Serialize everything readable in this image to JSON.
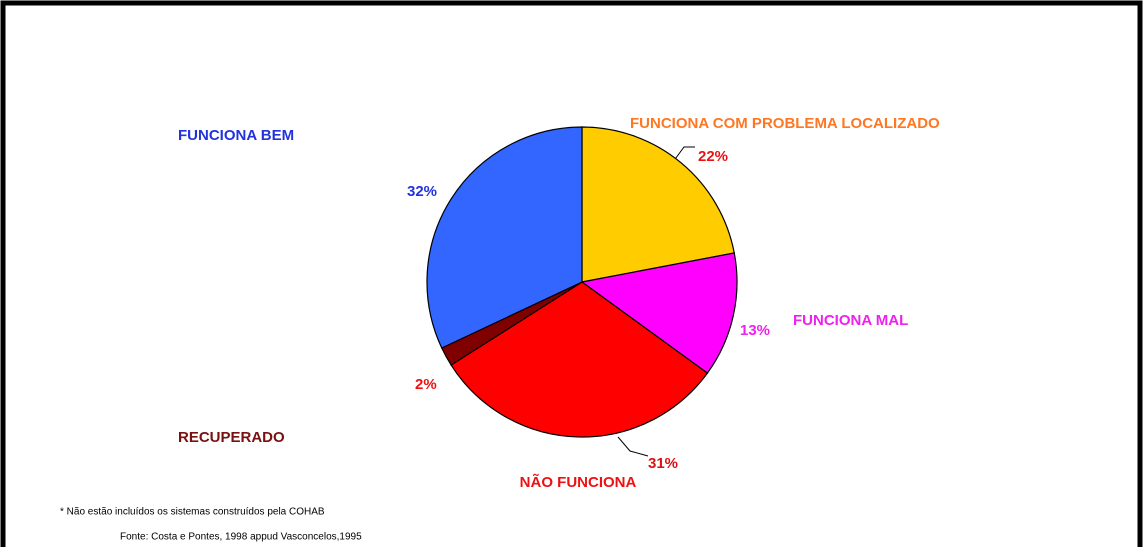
{
  "chart_data": {
    "type": "pie",
    "categories": [
      "FUNCIONA COM PROBLEMA LOCALIZADO",
      "FUNCIONA MAL",
      "NÃO FUNCIONA",
      "RECUPERADO",
      "FUNCIONA BEM"
    ],
    "values": [
      22,
      13,
      31,
      2,
      32
    ],
    "value_labels": [
      "22%",
      "13%",
      "31%",
      "2%",
      "32%"
    ],
    "colors": [
      "#ffcc00",
      "#ff00ff",
      "#ff0000",
      "#800000",
      "#3366ff"
    ],
    "label_colors": [
      "#ff7722",
      "#ee22ee",
      "#ee1111",
      "#7a1010",
      "#2233dd"
    ],
    "value_label_colors": [
      "#ee1111",
      "#ee22ee",
      "#dd1111",
      "#ee1111",
      "#2233dd"
    ],
    "footnotes": [
      "* Não estão incluídos os sistemas construídos pela COHAB",
      "Fonte: Costa e Pontes, 1998 appud Vasconcelos,1995"
    ]
  }
}
